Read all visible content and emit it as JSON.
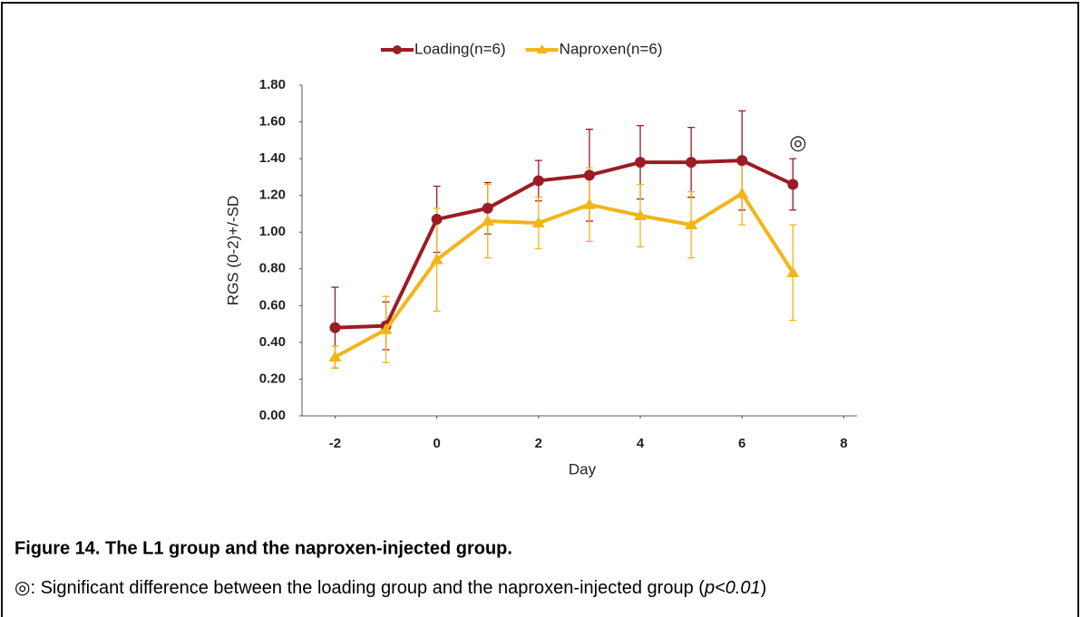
{
  "chart_data": {
    "type": "line",
    "x": [
      -2,
      -1,
      0,
      1,
      2,
      3,
      4,
      5,
      6,
      7
    ],
    "series": [
      {
        "name": "Loading(n=6)",
        "color": "#9b1c24",
        "marker": "circle",
        "values": [
          0.48,
          0.49,
          1.07,
          1.13,
          1.28,
          1.31,
          1.38,
          1.38,
          1.39,
          1.26
        ],
        "errors": [
          0.22,
          0.13,
          0.18,
          0.14,
          0.11,
          0.25,
          0.2,
          0.19,
          0.27,
          0.14
        ]
      },
      {
        "name": "Naproxen(n=6)",
        "color": "#f2b51a",
        "marker": "triangle",
        "values": [
          0.32,
          0.47,
          0.85,
          1.06,
          1.05,
          1.15,
          1.09,
          1.04,
          1.21,
          0.78
        ],
        "errors": [
          0.06,
          0.18,
          0.28,
          0.2,
          0.14,
          0.2,
          0.17,
          0.18,
          0.17,
          0.26
        ]
      }
    ],
    "xlim": [
      -2.65,
      8.26
    ],
    "xticks": [
      -2,
      0,
      2,
      4,
      6,
      8
    ],
    "ylim": [
      0,
      1.8
    ],
    "yticks": [
      {
        "value": 0,
        "label": "0.00"
      },
      {
        "value": 0.2,
        "label": "0.20"
      },
      {
        "value": 0.4,
        "label": "0.40"
      },
      {
        "value": 0.6,
        "label": "0.60"
      },
      {
        "value": 0.8,
        "label": "0.80"
      },
      {
        "value": 1,
        "label": "1.00"
      },
      {
        "value": 1.2,
        "label": "1.20"
      },
      {
        "value": 1.4,
        "label": "1.40"
      },
      {
        "value": 1.6,
        "label": "1.60"
      },
      {
        "value": 1.8,
        "label": "1.80"
      }
    ],
    "xlabel": "Day",
    "ylabel": "RGS (0-2)+/-SD",
    "annotation": {
      "text": "◎",
      "x": 7.1,
      "y": 1.48
    },
    "legend": "top",
    "grid": false
  },
  "caption": {
    "title": "Figure 14. The L1 group and the naproxen-injected group.",
    "note": "◎: Significant difference between the loading group and the naproxen-injected group (",
    "note_p": "p<0.01",
    "note_end": ")"
  }
}
